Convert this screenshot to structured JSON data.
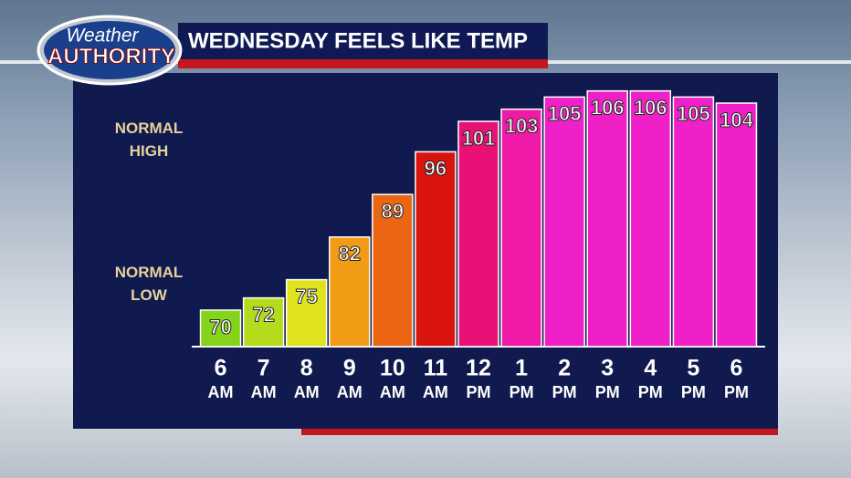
{
  "chart_data": {
    "type": "bar",
    "title": "WEDNESDAY FEELS LIKE TEMP",
    "logo": {
      "top": "Weather",
      "bottom": "AUTHORITY"
    },
    "annotations": [
      "NORMAL HIGH",
      "NORMAL LOW"
    ],
    "categories": [
      "6",
      "7",
      "8",
      "9",
      "10",
      "11",
      "12",
      "1",
      "2",
      "3",
      "4",
      "5",
      "6"
    ],
    "periods": [
      "AM",
      "AM",
      "AM",
      "AM",
      "AM",
      "AM",
      "PM",
      "PM",
      "PM",
      "PM",
      "PM",
      "PM",
      "PM"
    ],
    "values": [
      70,
      72,
      75,
      82,
      89,
      96,
      101,
      103,
      105,
      106,
      106,
      105,
      104
    ],
    "colors": [
      "#86d31c",
      "#b4dc1c",
      "#dfe21e",
      "#f29b14",
      "#ec6512",
      "#d9140f",
      "#ea1176",
      "#f01aa8",
      "#f020c8",
      "#f020c8",
      "#f020c8",
      "#f020c8",
      "#f020c8"
    ],
    "ylim": [
      64,
      110
    ]
  }
}
